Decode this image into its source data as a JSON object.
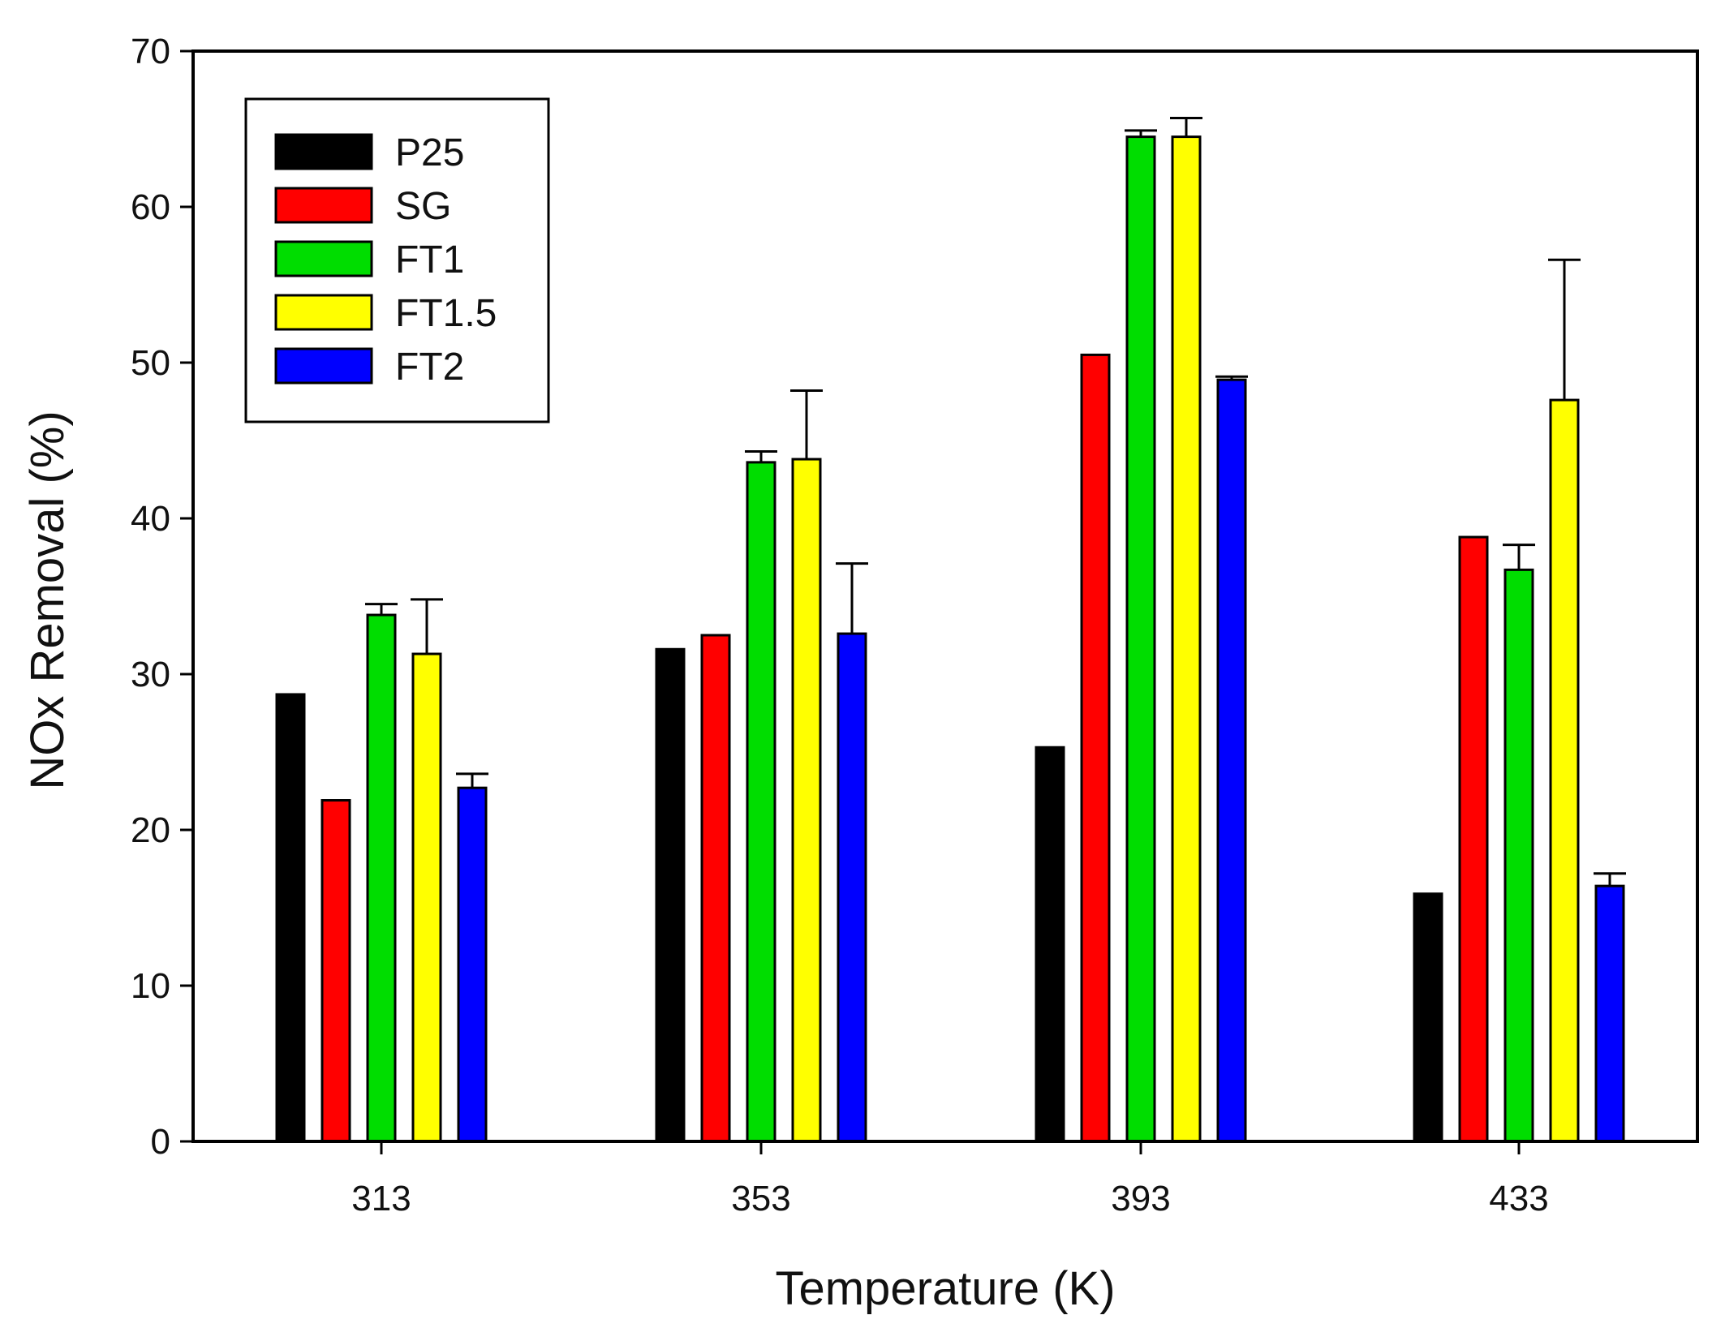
{
  "chart_data": {
    "type": "bar",
    "title": "",
    "xlabel": "Temperature (K)",
    "ylabel": "NOx Removal (%)",
    "ylim": [
      0,
      70
    ],
    "yticks": [
      0,
      10,
      20,
      30,
      40,
      50,
      60,
      70
    ],
    "categories": [
      "313",
      "353",
      "393",
      "433"
    ],
    "legend_position": "top-left",
    "grid": false,
    "error_bars": "upper",
    "series": [
      {
        "name": "P25",
        "color": "#000000",
        "values": [
          28.7,
          31.6,
          25.3,
          15.9
        ],
        "errors": [
          0.0,
          0.0,
          0.0,
          0.0
        ]
      },
      {
        "name": "SG",
        "color": "#ff0000",
        "values": [
          21.9,
          32.5,
          50.5,
          38.8
        ],
        "errors": [
          0.0,
          0.0,
          0.0,
          0.0
        ]
      },
      {
        "name": "FT1",
        "color": "#00dd00",
        "values": [
          33.8,
          43.6,
          64.5,
          36.7
        ],
        "errors": [
          0.7,
          0.7,
          0.4,
          1.6
        ]
      },
      {
        "name": "FT1.5",
        "color": "#ffff00",
        "values": [
          31.3,
          43.8,
          64.5,
          47.6
        ],
        "errors": [
          3.5,
          4.4,
          1.2,
          9.0
        ]
      },
      {
        "name": "FT2",
        "color": "#0000ff",
        "values": [
          22.7,
          32.6,
          48.9,
          16.4
        ],
        "errors": [
          0.9,
          4.5,
          0.2,
          0.8
        ]
      }
    ]
  }
}
